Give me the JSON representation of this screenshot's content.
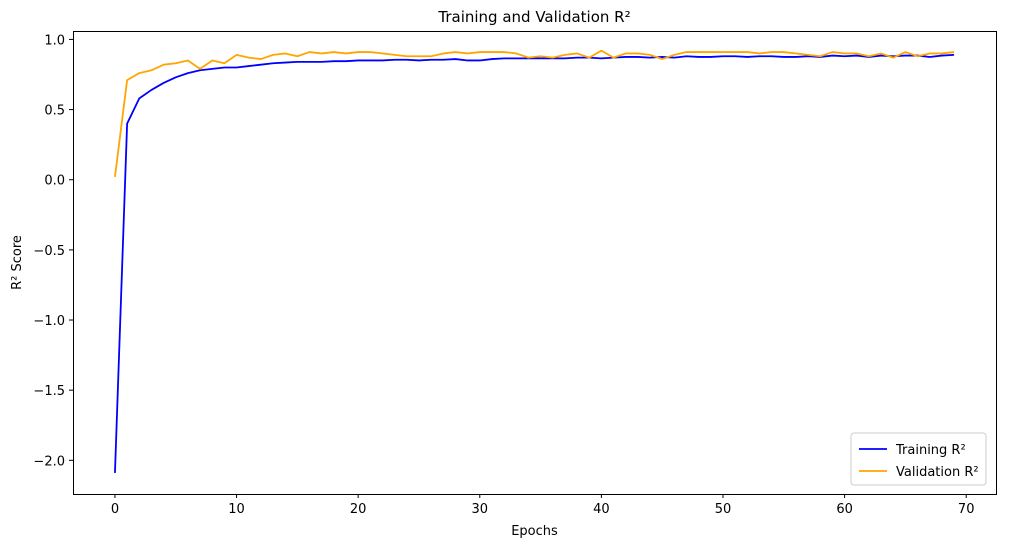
{
  "chart_data": {
    "type": "line",
    "title": "Training and Validation R²",
    "xlabel": "Epochs",
    "ylabel": "R² Score",
    "xlim": [
      -3.45,
      72.45
    ],
    "ylim": [
      -2.24,
      1.06
    ],
    "xticks": [
      0,
      10,
      20,
      30,
      40,
      50,
      60,
      70
    ],
    "yticks": [
      -2.0,
      -1.5,
      -1.0,
      -0.5,
      0.0,
      0.5,
      1.0
    ],
    "ytick_labels": [
      "−2.0",
      "−1.5",
      "−1.0",
      "−0.5",
      "0.0",
      "0.5",
      "1.0"
    ],
    "grid": false,
    "legend": "lower-right",
    "x": [
      0,
      1,
      2,
      3,
      4,
      5,
      6,
      7,
      8,
      9,
      10,
      11,
      12,
      13,
      14,
      15,
      16,
      17,
      18,
      19,
      20,
      21,
      22,
      23,
      24,
      25,
      26,
      27,
      28,
      29,
      30,
      31,
      32,
      33,
      34,
      35,
      36,
      37,
      38,
      39,
      40,
      41,
      42,
      43,
      44,
      45,
      46,
      47,
      48,
      49,
      50,
      51,
      52,
      53,
      54,
      55,
      56,
      57,
      58,
      59,
      60,
      61,
      62,
      63,
      64,
      65,
      66,
      67,
      68,
      69
    ],
    "series": [
      {
        "name": "Training R²",
        "color": "#0000ff",
        "values": [
          -2.09,
          0.4,
          0.58,
          0.64,
          0.69,
          0.73,
          0.76,
          0.78,
          0.79,
          0.8,
          0.8,
          0.81,
          0.82,
          0.83,
          0.835,
          0.84,
          0.84,
          0.84,
          0.845,
          0.845,
          0.85,
          0.85,
          0.85,
          0.855,
          0.855,
          0.85,
          0.855,
          0.855,
          0.86,
          0.85,
          0.85,
          0.86,
          0.865,
          0.865,
          0.865,
          0.865,
          0.865,
          0.865,
          0.87,
          0.87,
          0.865,
          0.87,
          0.875,
          0.875,
          0.87,
          0.875,
          0.87,
          0.88,
          0.875,
          0.875,
          0.88,
          0.88,
          0.875,
          0.88,
          0.88,
          0.875,
          0.875,
          0.88,
          0.875,
          0.885,
          0.88,
          0.885,
          0.875,
          0.885,
          0.88,
          0.885,
          0.885,
          0.875,
          0.885,
          0.89
        ]
      },
      {
        "name": "Validation R²",
        "color": "#ffa500",
        "values": [
          0.02,
          0.71,
          0.76,
          0.78,
          0.82,
          0.83,
          0.85,
          0.79,
          0.85,
          0.83,
          0.89,
          0.87,
          0.86,
          0.89,
          0.9,
          0.88,
          0.91,
          0.9,
          0.91,
          0.9,
          0.91,
          0.91,
          0.9,
          0.89,
          0.88,
          0.88,
          0.88,
          0.9,
          0.91,
          0.9,
          0.91,
          0.91,
          0.91,
          0.9,
          0.87,
          0.88,
          0.87,
          0.89,
          0.9,
          0.87,
          0.92,
          0.87,
          0.9,
          0.9,
          0.89,
          0.86,
          0.89,
          0.91,
          0.91,
          0.91,
          0.91,
          0.91,
          0.91,
          0.9,
          0.91,
          0.91,
          0.9,
          0.89,
          0.88,
          0.91,
          0.9,
          0.9,
          0.88,
          0.9,
          0.87,
          0.91,
          0.88,
          0.9,
          0.9,
          0.91
        ]
      }
    ]
  }
}
